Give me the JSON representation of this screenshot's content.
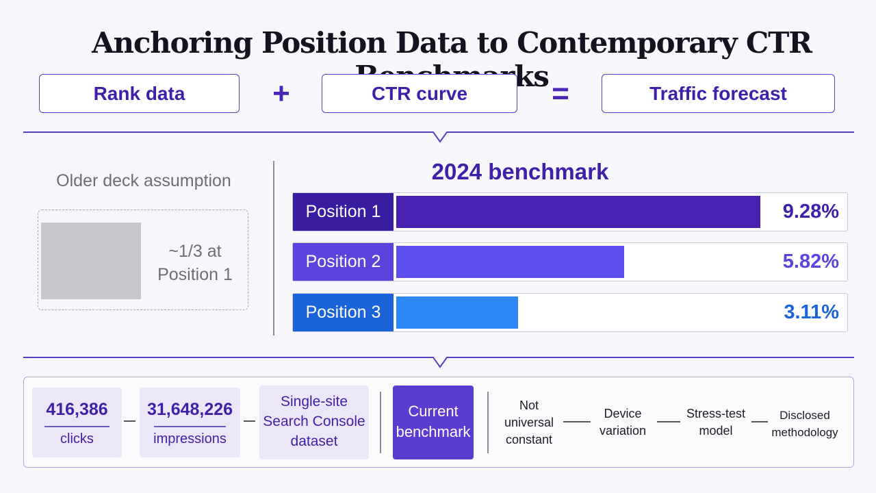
{
  "title": "Anchoring Position Data to Contemporary CTR Benchmarks",
  "equation": {
    "rank": "Rank data",
    "plus": "+",
    "ctr": "CTR curve",
    "equals": "=",
    "forecast": "Traffic forecast"
  },
  "older": {
    "title": "Older deck assumption",
    "note_line1": "~1/3 at",
    "note_line2": "Position 1"
  },
  "benchmark": {
    "title": "2024 benchmark"
  },
  "chart_data": {
    "type": "bar",
    "title": "2024 benchmark",
    "categories": [
      "Position 1",
      "Position 2",
      "Position 3"
    ],
    "values": [
      9.28,
      5.82,
      3.11
    ],
    "value_labels": [
      "9.28%",
      "5.82%",
      "3.11%"
    ],
    "label_colors": [
      "#3a1ca0",
      "#5b43de",
      "#1a63d8"
    ],
    "fill_colors": [
      "#4a20b0",
      "#5b4df0",
      "#2c86f6"
    ],
    "value_colors": [
      "#3f1fa8",
      "#5b43de",
      "#1a63d8"
    ],
    "xlim": [
      0,
      10
    ]
  },
  "stats": {
    "clicks_value": "416,386",
    "clicks_label": "clicks",
    "impressions_value": "31,648,226",
    "impressions_label": "impressions",
    "dataset_line1": "Single-site",
    "dataset_line2": "Search Console",
    "dataset_line3": "dataset",
    "current_line1": "Current",
    "current_line2": "benchmark"
  },
  "caveats": {
    "c1_line1": "Not",
    "c1_line2": "universal",
    "c1_line3": "constant",
    "c2_line1": "Device",
    "c2_line2": "variation",
    "c3_line1": "Stress-test",
    "c3_line2": "model",
    "c4_line1": "Disclosed",
    "c4_line2": "methodology"
  }
}
